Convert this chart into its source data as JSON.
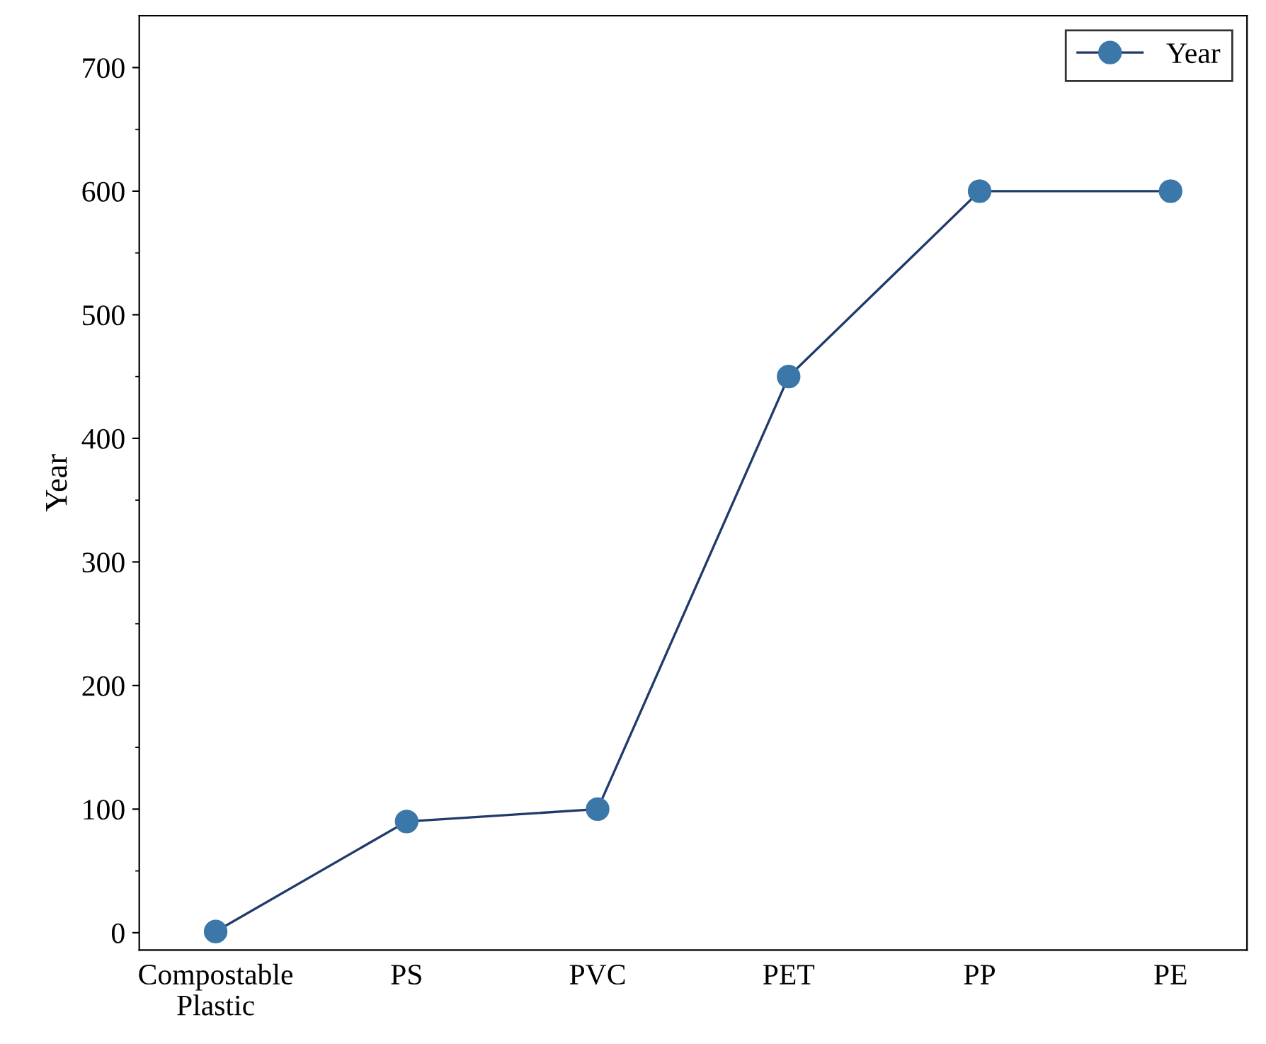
{
  "chart_data": {
    "type": "line",
    "ylabel": "Year",
    "categories": [
      "Compostable\nPlastic",
      "PS",
      "PVC",
      "PET",
      "PP",
      "PE"
    ],
    "series": [
      {
        "name": "Year",
        "color": "#3b77a8",
        "values": [
          1,
          90,
          100,
          450,
          600,
          600
        ]
      }
    ],
    "ylim": [
      -14,
      742
    ],
    "yticks": [
      0,
      100,
      200,
      300,
      400,
      500,
      600,
      700
    ],
    "marker": "circle",
    "line_style": "solid",
    "legend": "top right",
    "grid": false
  }
}
